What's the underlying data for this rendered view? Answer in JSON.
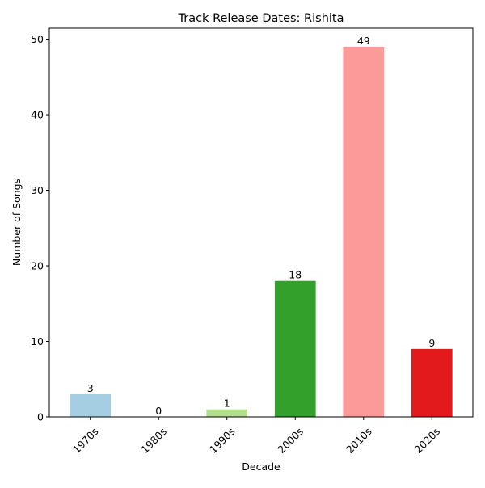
{
  "chart_data": {
    "type": "bar",
    "title": "Track Release Dates: Rishita",
    "xlabel": "Decade",
    "ylabel": "Number of Songs",
    "categories": [
      "1970s",
      "1980s",
      "1990s",
      "2000s",
      "2010s",
      "2020s"
    ],
    "values": [
      3,
      0,
      1,
      18,
      49,
      9
    ],
    "colors": [
      "#a6cee3",
      "#1f78b4",
      "#b2df8a",
      "#33a02c",
      "#fb9a99",
      "#e31a1c"
    ],
    "ylim": [
      0,
      51.45
    ],
    "yticks": [
      0,
      10,
      20,
      30,
      40,
      50
    ],
    "grid": false,
    "legend": "none"
  }
}
